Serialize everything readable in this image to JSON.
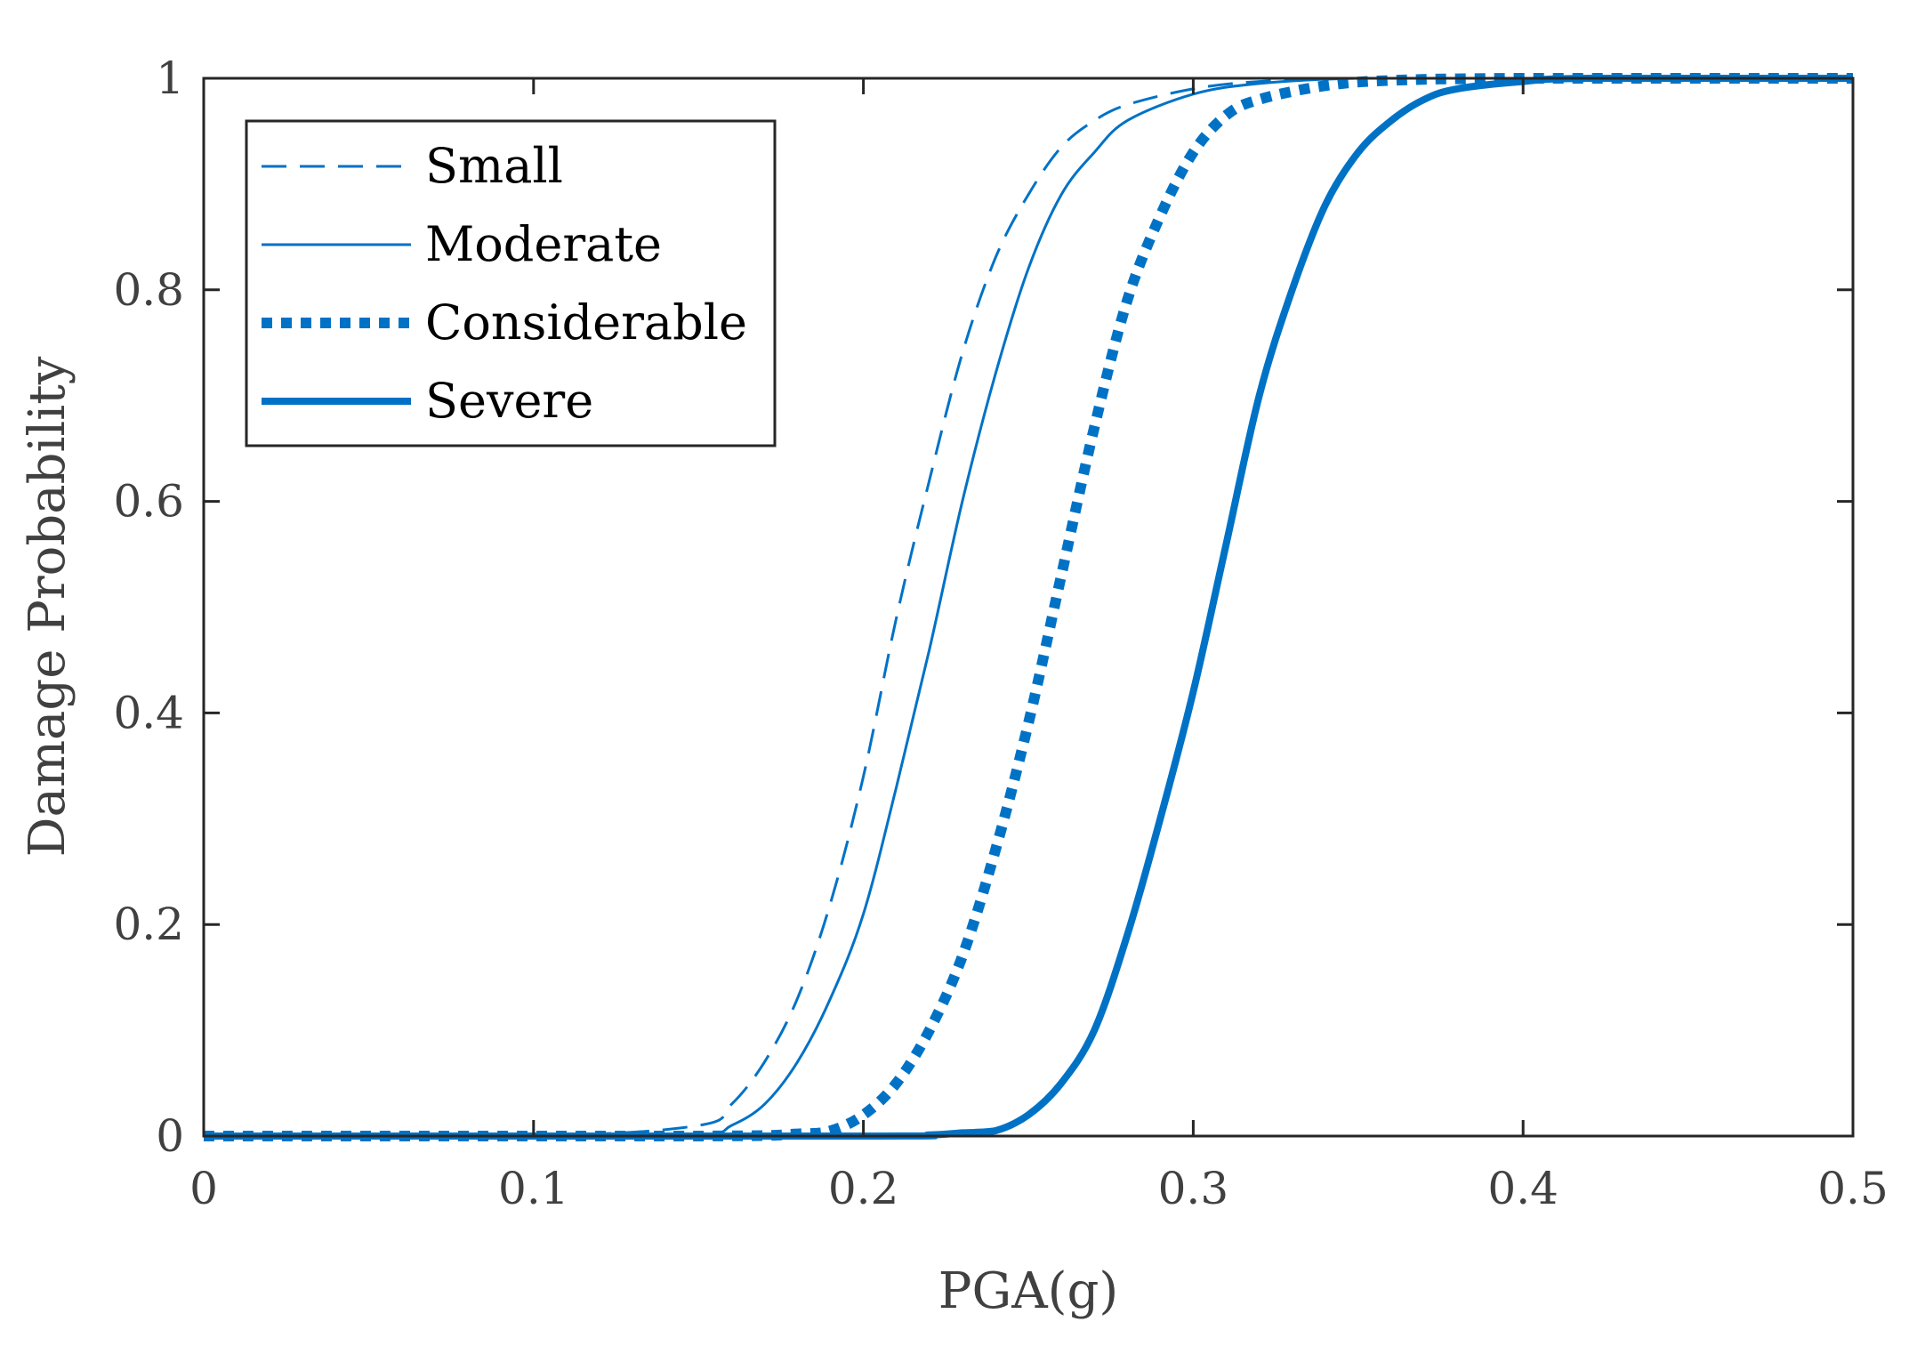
{
  "chart_data": {
    "type": "line",
    "title": "",
    "xlabel": "PGA(g)",
    "ylabel": "Damage Probability",
    "xlim": [
      0,
      0.5
    ],
    "ylim": [
      0,
      1
    ],
    "xticks": [
      0,
      0.1,
      0.2,
      0.3,
      0.4,
      0.5
    ],
    "xtick_labels": [
      "0",
      "0.1",
      "0.2",
      "0.3",
      "0.4",
      "0.5"
    ],
    "yticks": [
      0,
      0.2,
      0.4,
      0.6,
      0.8,
      1
    ],
    "ytick_labels": [
      "0",
      "0.2",
      "0.4",
      "0.6",
      "0.8",
      "1"
    ],
    "grid": false,
    "legend_position": "top-left",
    "line_color": "#0072C6",
    "series": [
      {
        "name": "Small",
        "style": "dashed",
        "x": [
          0,
          0.1,
          0.15,
          0.16,
          0.17,
          0.18,
          0.19,
          0.2,
          0.21,
          0.22,
          0.23,
          0.24,
          0.25,
          0.26,
          0.27,
          0.28,
          0.3,
          0.32,
          0.35,
          0.4,
          0.5
        ],
        "y": [
          0,
          0,
          0.01,
          0.03,
          0.07,
          0.13,
          0.22,
          0.34,
          0.49,
          0.62,
          0.74,
          0.83,
          0.89,
          0.935,
          0.96,
          0.975,
          0.99,
          0.997,
          1,
          1,
          1
        ]
      },
      {
        "name": "Moderate",
        "style": "solid-thin",
        "x": [
          0,
          0.1,
          0.15,
          0.16,
          0.17,
          0.18,
          0.19,
          0.2,
          0.21,
          0.22,
          0.23,
          0.24,
          0.25,
          0.26,
          0.27,
          0.28,
          0.3,
          0.32,
          0.35,
          0.4,
          0.5
        ],
        "y": [
          0,
          0,
          0.001,
          0.01,
          0.03,
          0.07,
          0.13,
          0.21,
          0.33,
          0.46,
          0.6,
          0.72,
          0.82,
          0.89,
          0.93,
          0.96,
          0.985,
          0.995,
          1,
          1,
          1
        ]
      },
      {
        "name": "Considerable",
        "style": "dotted-thick",
        "x": [
          0,
          0.15,
          0.18,
          0.19,
          0.2,
          0.21,
          0.22,
          0.23,
          0.24,
          0.25,
          0.26,
          0.27,
          0.28,
          0.29,
          0.3,
          0.31,
          0.32,
          0.34,
          0.36,
          0.4,
          0.5
        ],
        "y": [
          0,
          0,
          0.002,
          0.005,
          0.02,
          0.05,
          0.1,
          0.17,
          0.27,
          0.39,
          0.53,
          0.67,
          0.79,
          0.87,
          0.93,
          0.965,
          0.98,
          0.993,
          0.998,
          1,
          1
        ]
      },
      {
        "name": "Severe",
        "style": "solid-thick",
        "x": [
          0,
          0.2,
          0.22,
          0.23,
          0.24,
          0.25,
          0.26,
          0.27,
          0.28,
          0.29,
          0.3,
          0.31,
          0.32,
          0.33,
          0.34,
          0.35,
          0.36,
          0.37,
          0.38,
          0.4,
          0.42,
          0.5
        ],
        "y": [
          0,
          0,
          0.001,
          0.003,
          0.005,
          0.02,
          0.05,
          0.1,
          0.19,
          0.3,
          0.42,
          0.56,
          0.7,
          0.8,
          0.88,
          0.93,
          0.96,
          0.98,
          0.99,
          0.997,
          1,
          1
        ]
      }
    ]
  }
}
